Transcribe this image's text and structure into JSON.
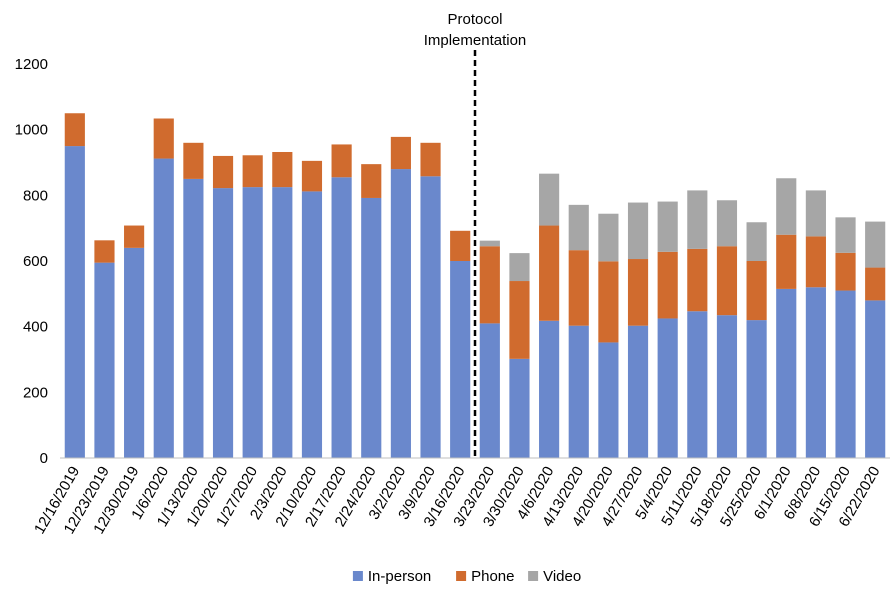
{
  "chart_data": {
    "type": "bar",
    "stacked": true,
    "title": "",
    "xlabel": "",
    "ylabel": "",
    "ylim": [
      0,
      1200
    ],
    "yticks": [
      0,
      200,
      400,
      600,
      800,
      1000,
      1200
    ],
    "grid": false,
    "legend": "bottom",
    "categories": [
      "12/16/2019",
      "12/23/2019",
      "12/30/2019",
      "1/6/2020",
      "1/13/2020",
      "1/20/2020",
      "1/27/2020",
      "2/3/2020",
      "2/10/2020",
      "2/17/2020",
      "2/24/2020",
      "3/2/2020",
      "3/9/2020",
      "3/16/2020",
      "3/23/2020",
      "3/30/2020",
      "4/6/2020",
      "4/13/2020",
      "4/20/2020",
      "4/27/2020",
      "5/4/2020",
      "5/11/2020",
      "5/18/2020",
      "5/25/2020",
      "6/1/2020",
      "6/8/2020",
      "6/15/2020",
      "6/22/2020"
    ],
    "series": [
      {
        "name": "In-person",
        "color": "#6a88cc",
        "values": [
          950,
          595,
          640,
          912,
          850,
          822,
          825,
          825,
          812,
          855,
          792,
          880,
          858,
          600,
          410,
          302,
          418,
          403,
          352,
          403,
          425,
          447,
          435,
          420,
          515,
          520,
          510,
          480
        ]
      },
      {
        "name": "Phone",
        "color": "#d06b2e",
        "values": [
          100,
          68,
          68,
          122,
          110,
          98,
          97,
          107,
          93,
          100,
          103,
          98,
          102,
          92,
          235,
          237,
          290,
          230,
          247,
          203,
          203,
          190,
          210,
          180,
          165,
          155,
          115,
          100
        ]
      },
      {
        "name": "Video",
        "color": "#a6a6a6",
        "values": [
          0,
          0,
          0,
          0,
          0,
          0,
          0,
          0,
          0,
          0,
          0,
          0,
          0,
          0,
          17,
          85,
          158,
          138,
          145,
          172,
          153,
          178,
          140,
          118,
          172,
          140,
          108,
          140
        ]
      }
    ],
    "annotation": {
      "text_lines": [
        "Protocol",
        "Implementation"
      ],
      "between_categories": [
        "3/16/2020",
        "3/23/2020"
      ],
      "style": "dashed-vertical-line"
    }
  }
}
